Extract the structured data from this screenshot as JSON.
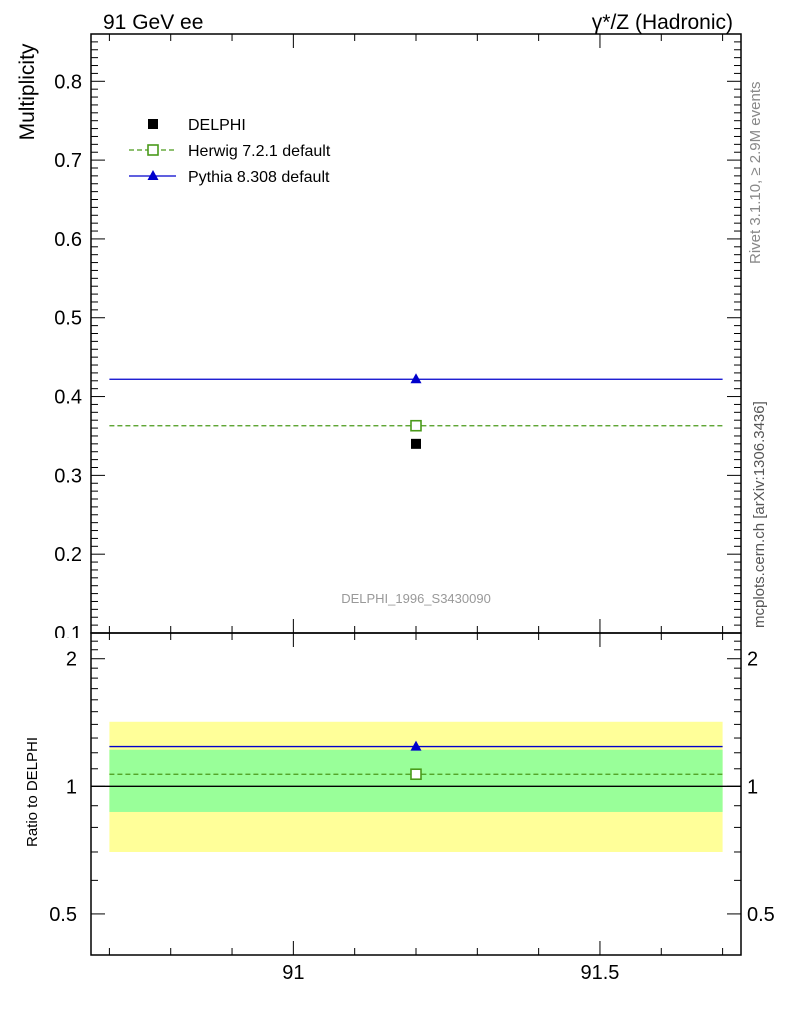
{
  "header": {
    "left_title": "91 GeV ee",
    "right_title": "γ*/Z (Hadronic)"
  },
  "side_labels": {
    "rivet": "Rivet 3.1.10, ≥ 2.9M events",
    "mcplots": "mcplots.cern.ch [arXiv:1306.3436]"
  },
  "watermark": "DELPHI_1996_S3430090",
  "legend": [
    {
      "label": "DELPHI",
      "marker": "filled-square",
      "color": "#000000",
      "line": "none"
    },
    {
      "label": "Herwig 7.2.1 default",
      "marker": "open-square",
      "color": "#4a9a1a",
      "line": "dashed"
    },
    {
      "label": "Pythia 8.308 default",
      "marker": "filled-triangle",
      "color": "#0000cc",
      "line": "solid"
    }
  ],
  "chart_data": [
    {
      "type": "scatter",
      "panel": "main",
      "ylabel": "Multiplicity",
      "xlim": [
        90.67,
        91.73
      ],
      "ylim": [
        0.1,
        0.86
      ],
      "yticks": [
        0.2,
        0.3,
        0.4,
        0.5,
        0.6,
        0.7,
        0.8
      ],
      "ytick_labels": [
        "0.2",
        "0.3",
        "0.4",
        "0.5",
        "0.6",
        "0.7",
        "0.8"
      ],
      "partial_ytick_label": "0.1",
      "series": [
        {
          "name": "DELPHI",
          "x": [
            91.2
          ],
          "y": [
            0.34
          ],
          "style": "points",
          "color": "#000000"
        },
        {
          "name": "Herwig 7.2.1 default",
          "x": [
            91.2
          ],
          "y": [
            0.363
          ],
          "bin": [
            90.7,
            91.7
          ],
          "style": "dashed",
          "color": "#4a9a1a"
        },
        {
          "name": "Pythia 8.308 default",
          "x": [
            91.2
          ],
          "y": [
            0.422
          ],
          "bin": [
            90.7,
            91.7
          ],
          "style": "solid",
          "color": "#0000cc"
        }
      ]
    },
    {
      "type": "scatter",
      "panel": "ratio",
      "ylabel": "Ratio to DELPHI",
      "xlim": [
        90.67,
        91.73
      ],
      "ylim": [
        0.4,
        2.3
      ],
      "log_y": true,
      "yticks": [
        0.5,
        1,
        2
      ],
      "ytick_labels": [
        "0.5",
        "1",
        "2"
      ],
      "xticks": [
        91,
        91.5
      ],
      "xtick_labels": [
        "91",
        "91.5"
      ],
      "reference_line": 1,
      "bands": [
        {
          "name": "total",
          "low": 0.7,
          "high": 1.42,
          "color": "#ffff99"
        },
        {
          "name": "stat",
          "low": 0.87,
          "high": 1.22,
          "color": "#99ff99"
        }
      ],
      "series": [
        {
          "name": "Herwig 7.2.1 default",
          "x": [
            91.2
          ],
          "y": [
            1.068
          ],
          "bin": [
            90.7,
            91.7
          ],
          "style": "dashed",
          "color": "#4a9a1a"
        },
        {
          "name": "Pythia 8.308 default",
          "x": [
            91.2
          ],
          "y": [
            1.241
          ],
          "bin": [
            90.7,
            91.7
          ],
          "style": "solid",
          "color": "#0000cc"
        }
      ]
    }
  ]
}
